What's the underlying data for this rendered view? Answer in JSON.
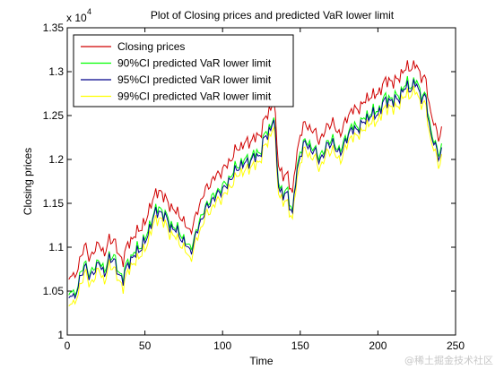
{
  "chart_data": {
    "type": "line",
    "title": "Plot of Closing prices and predicted VaR lower limit",
    "xlabel": "Time",
    "ylabel": "Closing prices",
    "y_multiplier_label": "x 10",
    "y_multiplier_exponent": "4",
    "xlim": [
      0,
      250
    ],
    "ylim": [
      1.0,
      1.35
    ],
    "x_ticks": [
      0,
      50,
      100,
      150,
      200,
      250
    ],
    "y_ticks": [
      1,
      1.05,
      1.1,
      1.15,
      1.2,
      1.25,
      1.3,
      1.35
    ],
    "y_tick_labels": [
      "1",
      "1.05",
      "1.1",
      "1.15",
      "1.2",
      "1.25",
      "1.3",
      "1.35"
    ],
    "x_tick_labels": [
      "0",
      "50",
      "100",
      "150",
      "200",
      "250"
    ],
    "grid": false,
    "legend_position": "top-left",
    "x_range": [
      1,
      241
    ],
    "base_closing_prices": [
      [
        1,
        1.06
      ],
      [
        3,
        1.075
      ],
      [
        5,
        1.062
      ],
      [
        8,
        1.085
      ],
      [
        11,
        1.103
      ],
      [
        14,
        1.088
      ],
      [
        17,
        1.095
      ],
      [
        21,
        1.105
      ],
      [
        24,
        1.09
      ],
      [
        27,
        1.11
      ],
      [
        30,
        1.108
      ],
      [
        33,
        1.092
      ],
      [
        36,
        1.085
      ],
      [
        39,
        1.104
      ],
      [
        43,
        1.112
      ],
      [
        47,
        1.122
      ],
      [
        51,
        1.13
      ],
      [
        54,
        1.152
      ],
      [
        57,
        1.16
      ],
      [
        60,
        1.165
      ],
      [
        63,
        1.155
      ],
      [
        66,
        1.148
      ],
      [
        70,
        1.14
      ],
      [
        73,
        1.136
      ],
      [
        76,
        1.125
      ],
      [
        79,
        1.118
      ],
      [
        82,
        1.13
      ],
      [
        85,
        1.148
      ],
      [
        88,
        1.162
      ],
      [
        91,
        1.17
      ],
      [
        94,
        1.178
      ],
      [
        97,
        1.183
      ],
      [
        100,
        1.188
      ],
      [
        103,
        1.194
      ],
      [
        106,
        1.202
      ],
      [
        109,
        1.212
      ],
      [
        112,
        1.215
      ],
      [
        115,
        1.219
      ],
      [
        118,
        1.221
      ],
      [
        121,
        1.225
      ],
      [
        124,
        1.228
      ],
      [
        127,
        1.245
      ],
      [
        130,
        1.255
      ],
      [
        133,
        1.268
      ],
      [
        136,
        1.195
      ],
      [
        139,
        1.18
      ],
      [
        142,
        1.182
      ],
      [
        145,
        1.16
      ],
      [
        147,
        1.195
      ],
      [
        150,
        1.23
      ],
      [
        153,
        1.24
      ],
      [
        156,
        1.236
      ],
      [
        159,
        1.232
      ],
      [
        162,
        1.222
      ],
      [
        165,
        1.228
      ],
      [
        168,
        1.24
      ],
      [
        171,
        1.242
      ],
      [
        174,
        1.23
      ],
      [
        177,
        1.233
      ],
      [
        180,
        1.247
      ],
      [
        183,
        1.257
      ],
      [
        186,
        1.256
      ],
      [
        189,
        1.261
      ],
      [
        192,
        1.267
      ],
      [
        195,
        1.273
      ],
      [
        198,
        1.272
      ],
      [
        201,
        1.278
      ],
      [
        204,
        1.287
      ],
      [
        207,
        1.292
      ],
      [
        210,
        1.286
      ],
      [
        213,
        1.294
      ],
      [
        216,
        1.298
      ],
      [
        219,
        1.307
      ],
      [
        222,
        1.303
      ],
      [
        225,
        1.309
      ],
      [
        228,
        1.293
      ],
      [
        231,
        1.29
      ],
      [
        234,
        1.252
      ],
      [
        237,
        1.236
      ],
      [
        239,
        1.226
      ],
      [
        241,
        1.233
      ]
    ],
    "series": [
      {
        "name": "Closing prices",
        "color": "#d00000",
        "offset": 0.0
      },
      {
        "name": "90%CI predicted VaR lower limit",
        "color": "#00ff00",
        "offset": -0.019
      },
      {
        "name": "95%CI predicted VaR lower limit",
        "color": "#00008b",
        "offset": -0.0225
      },
      {
        "name": "99%CI predicted VaR lower limit",
        "color": "#ffff00",
        "offset": -0.0305
      }
    ]
  },
  "watermark": "@稀土掘金技术社区"
}
